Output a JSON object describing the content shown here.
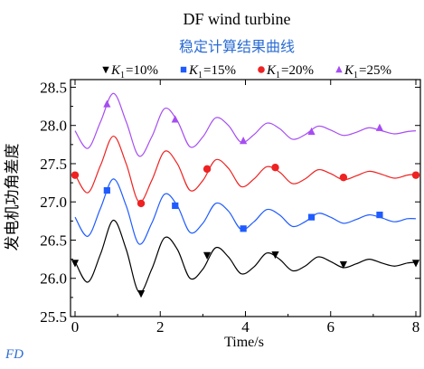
{
  "chart_data": {
    "type": "line",
    "title": "DF wind turbine",
    "subtitle": "稳定计算结果曲线",
    "xlabel": "Time/s",
    "ylabel": "发电机功角差度",
    "xlim": [
      0,
      8
    ],
    "ylim": [
      25.5,
      28.6
    ],
    "x_ticks": [
      "0",
      "2",
      "4",
      "6",
      "8"
    ],
    "y_ticks": [
      "25.5",
      "26.0",
      "26.5",
      "27.0",
      "27.5",
      "28.0",
      "28.5"
    ],
    "grid": false,
    "legend_position": "top",
    "series": [
      {
        "name": "K1=10%",
        "legend_var": "K",
        "legend_sub": "1",
        "legend_val": "=10%",
        "color": "#000000",
        "marker": "triangle-down",
        "baseline": 26.2,
        "amplitude": 0.55,
        "x": [
          0,
          0.3,
          0.6,
          0.9,
          1.2,
          1.5,
          1.8,
          2.1,
          2.4,
          2.7,
          3.0,
          3.3,
          3.6,
          3.9,
          4.2,
          4.5,
          4.8,
          5.1,
          5.4,
          5.7,
          6.0,
          6.3,
          6.6,
          6.9,
          7.2,
          7.5,
          7.8,
          8.0
        ],
        "y": [
          26.22,
          25.95,
          26.32,
          26.76,
          26.38,
          25.82,
          26.12,
          26.53,
          26.38,
          26.0,
          26.12,
          26.4,
          26.28,
          26.06,
          26.15,
          26.33,
          26.25,
          26.1,
          26.16,
          26.28,
          26.22,
          26.14,
          26.19,
          26.25,
          26.2,
          26.16,
          26.2,
          26.21
        ],
        "marker_points": [
          [
            0.0,
            26.2
          ],
          [
            1.55,
            25.8
          ],
          [
            3.1,
            26.3
          ],
          [
            4.7,
            26.31
          ],
          [
            6.3,
            26.18
          ],
          [
            8.0,
            26.2
          ]
        ]
      },
      {
        "name": "K1=15%",
        "legend_var": "K",
        "legend_sub": "1",
        "legend_val": "=15%",
        "color": "#1f5bff",
        "marker": "square",
        "baseline": 26.78,
        "amplitude": 0.5,
        "x": [
          0,
          0.3,
          0.6,
          0.9,
          1.2,
          1.5,
          1.8,
          2.1,
          2.4,
          2.7,
          3.0,
          3.3,
          3.6,
          3.9,
          4.2,
          4.5,
          4.8,
          5.1,
          5.4,
          5.7,
          6.0,
          6.3,
          6.6,
          6.9,
          7.2,
          7.5,
          7.8,
          8.0
        ],
        "y": [
          26.8,
          26.55,
          26.92,
          27.3,
          26.95,
          26.45,
          26.72,
          27.1,
          26.95,
          26.6,
          26.72,
          26.98,
          26.88,
          26.64,
          26.74,
          26.9,
          26.83,
          26.68,
          26.74,
          26.85,
          26.8,
          26.72,
          26.77,
          26.83,
          26.79,
          26.74,
          26.78,
          26.78
        ],
        "marker_points": [
          [
            0.75,
            27.15
          ],
          [
            2.35,
            26.95
          ],
          [
            3.95,
            26.65
          ],
          [
            5.55,
            26.8
          ],
          [
            7.15,
            26.83
          ]
        ]
      },
      {
        "name": "K1=20%",
        "legend_var": "K",
        "legend_sub": "1",
        "legend_val": "=20%",
        "color": "#ee2222",
        "marker": "circle",
        "baseline": 27.35,
        "amplitude": 0.5,
        "x": [
          0,
          0.3,
          0.6,
          0.9,
          1.2,
          1.5,
          1.8,
          2.1,
          2.4,
          2.7,
          3.0,
          3.3,
          3.6,
          3.9,
          4.2,
          4.5,
          4.8,
          5.1,
          5.4,
          5.7,
          6.0,
          6.3,
          6.6,
          6.9,
          7.2,
          7.5,
          7.8,
          8.0
        ],
        "y": [
          27.36,
          27.12,
          27.48,
          27.86,
          27.5,
          27.0,
          27.28,
          27.66,
          27.5,
          27.15,
          27.28,
          27.55,
          27.44,
          27.2,
          27.3,
          27.46,
          27.39,
          27.24,
          27.3,
          27.42,
          27.37,
          27.29,
          27.34,
          27.4,
          27.36,
          27.31,
          27.35,
          27.36
        ],
        "marker_points": [
          [
            0.0,
            27.35
          ],
          [
            1.55,
            26.98
          ],
          [
            3.1,
            27.43
          ],
          [
            4.7,
            27.45
          ],
          [
            6.3,
            27.32
          ],
          [
            8.0,
            27.35
          ]
        ]
      },
      {
        "name": "K1=25%",
        "legend_var": "K",
        "legend_sub": "1",
        "legend_val": "=25%",
        "color": "#a64df2",
        "marker": "triangle-up",
        "baseline": 27.92,
        "amplitude": 0.5,
        "x": [
          0,
          0.3,
          0.6,
          0.9,
          1.2,
          1.5,
          1.8,
          2.1,
          2.4,
          2.7,
          3.0,
          3.3,
          3.6,
          3.9,
          4.2,
          4.5,
          4.8,
          5.1,
          5.4,
          5.7,
          6.0,
          6.3,
          6.6,
          6.9,
          7.2,
          7.5,
          7.8,
          8.0
        ],
        "y": [
          27.93,
          27.7,
          28.05,
          28.42,
          28.05,
          27.6,
          27.85,
          28.22,
          28.06,
          27.72,
          27.85,
          28.1,
          28.0,
          27.78,
          27.88,
          28.03,
          27.96,
          27.82,
          27.88,
          27.99,
          27.94,
          27.87,
          27.91,
          27.97,
          27.93,
          27.89,
          27.92,
          27.93
        ],
        "marker_points": [
          [
            0.75,
            28.28
          ],
          [
            2.35,
            28.08
          ],
          [
            3.95,
            27.8
          ],
          [
            5.55,
            27.92
          ],
          [
            7.15,
            27.97
          ]
        ]
      }
    ]
  },
  "footer": {
    "corner_text": "FD"
  }
}
